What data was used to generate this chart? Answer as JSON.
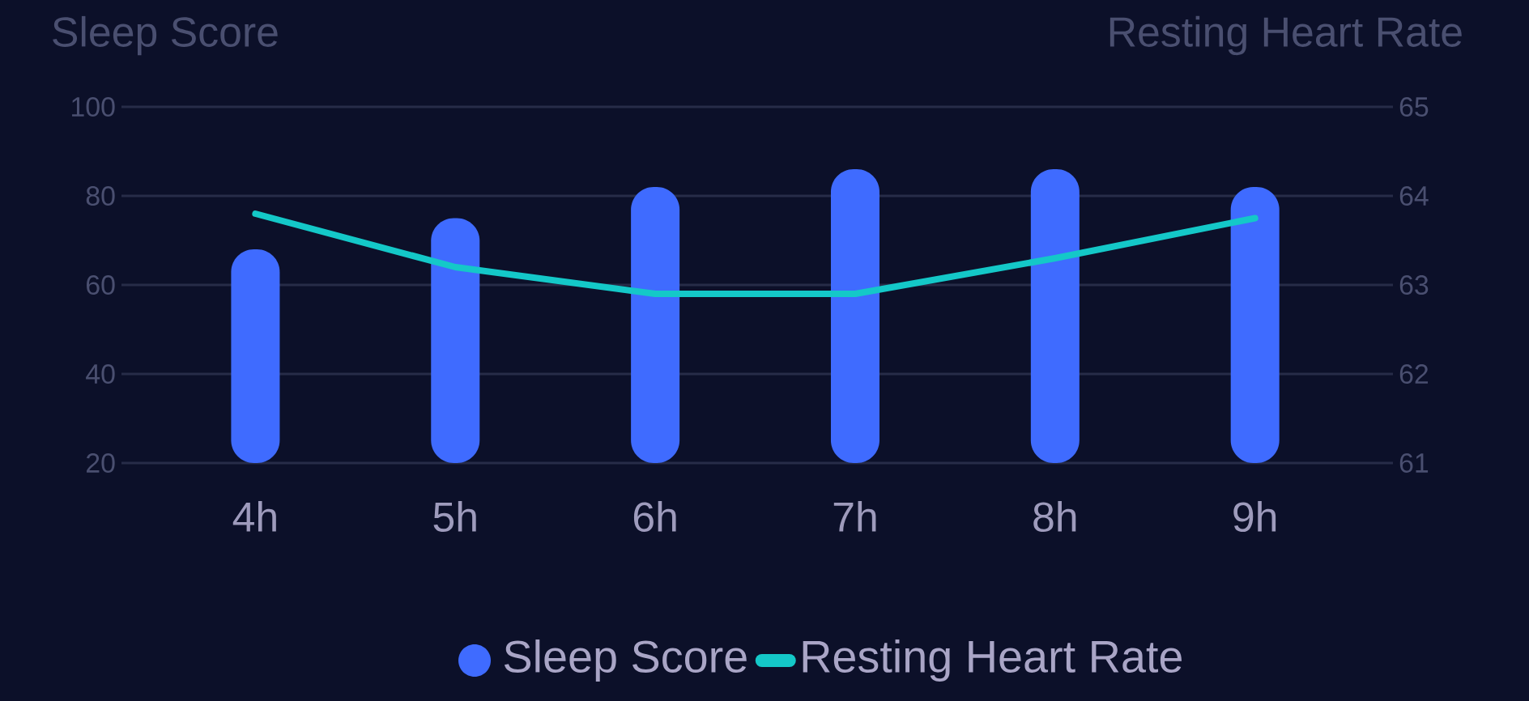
{
  "chart_data": {
    "type": "bar",
    "ylabel": "Sleep Score",
    "y2label": "Resting Heart Rate",
    "categories": [
      "4h",
      "5h",
      "6h",
      "7h",
      "8h",
      "9h"
    ],
    "series": [
      {
        "name": "Sleep Score",
        "color": "#3f6bff",
        "values": [
          68,
          75,
          82,
          86,
          86,
          82
        ]
      },
      {
        "name": "Resting Heart Rate",
        "type": "line",
        "axis": "y2",
        "color": "#14c8c8",
        "values": [
          63.8,
          63.2,
          62.9,
          62.9,
          63.3,
          63.75
        ]
      }
    ],
    "ylim": [
      20,
      100
    ],
    "yticks": [
      20,
      40,
      60,
      80,
      100
    ],
    "y2lim": [
      61,
      65
    ],
    "y2ticks": [
      61,
      62,
      63,
      64,
      65
    ],
    "grid": "y",
    "legend": "bottom"
  }
}
